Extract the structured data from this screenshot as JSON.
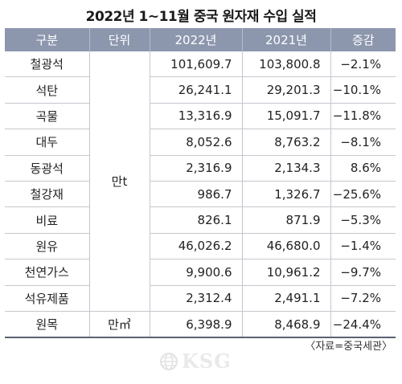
{
  "title": "2022년 1~11월 중국 원자재 수입 실적",
  "headers": [
    "구분",
    "단위",
    "2022년",
    "2021년",
    "증감"
  ],
  "rows": [
    {
      "name": "철광석",
      "y2022": "101,609.7",
      "y2021": "103,800.8",
      "change": "−2.1%"
    },
    {
      "name": "석탄",
      "y2022": "26,241.1",
      "y2021": "29,201.3",
      "change": "−10.1%"
    },
    {
      "name": "곡물",
      "y2022": "13,316.9",
      "y2021": "15,091.7",
      "change": "−11.8%"
    },
    {
      "name": "대두",
      "y2022": "8,052.6",
      "y2021": "8,763.2",
      "change": "−8.1%"
    },
    {
      "name": "동광석",
      "y2022": "2,316.9",
      "y2021": "2,134.3",
      "change": "8.6%"
    },
    {
      "name": "철강재",
      "y2022": "986.7",
      "y2021": "1,326.7",
      "change": "−25.6%"
    },
    {
      "name": "비료",
      "y2022": "826.1",
      "y2021": "871.9",
      "change": "−5.3%"
    },
    {
      "name": "원유",
      "y2022": "46,026.2",
      "y2021": "46,680.0",
      "change": "−1.4%"
    },
    {
      "name": "천연가스",
      "y2022": "9,900.6",
      "y2021": "10,961.2",
      "change": "−9.7%"
    },
    {
      "name": "석유제품",
      "y2022": "2,312.4",
      "y2021": "2,491.1",
      "change": "−7.2%"
    },
    {
      "name": "원목",
      "y2022": "6,398.9",
      "y2021": "8,468.9",
      "change": "−24.4%"
    }
  ],
  "units": {
    "main": "만t",
    "timber": "만㎥"
  },
  "source_note": "〈자료=중국세관〉",
  "watermark": {
    "text": "KSG",
    "icon": "globe-icon",
    "color": "#e9e9e9"
  },
  "colors": {
    "header_bg": "#8c97ae",
    "header_text": "#ffffff",
    "grid": "#c3c7cd"
  }
}
